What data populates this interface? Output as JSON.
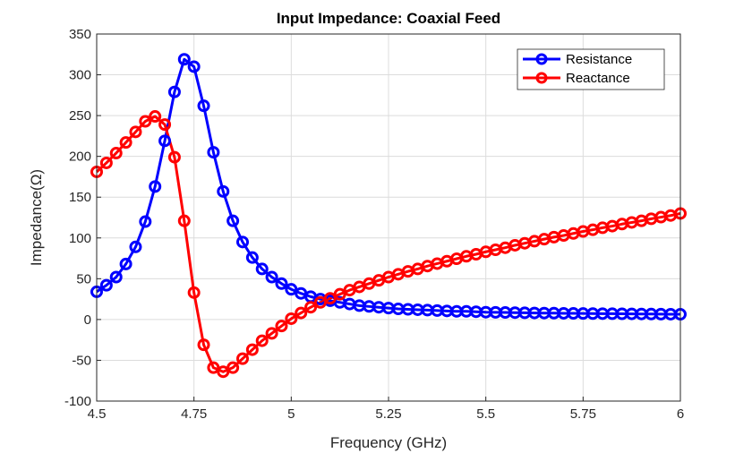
{
  "chart_data": {
    "type": "line",
    "title": "Input Impedance: Coaxial Feed",
    "xlabel": "Frequency (GHz)",
    "ylabel": "Impedance(Ω)",
    "xlim": [
      4.5,
      6
    ],
    "ylim": [
      -100,
      350
    ],
    "xticks": [
      4.5,
      4.75,
      5,
      5.25,
      5.5,
      5.75,
      6
    ],
    "xtick_labels": [
      "4.5",
      "4.75",
      "5",
      "5.25",
      "5.5",
      "5.75",
      "6"
    ],
    "yticks": [
      -100,
      -50,
      0,
      50,
      100,
      150,
      200,
      250,
      300,
      350
    ],
    "ytick_labels": [
      "-100",
      "-50",
      "0",
      "50",
      "100",
      "150",
      "200",
      "250",
      "300",
      "350"
    ],
    "grid": true,
    "legend_placement": "top-right",
    "marker": "circle",
    "x": [
      4.5,
      4.525,
      4.55,
      4.575,
      4.6,
      4.625,
      4.65,
      4.675,
      4.7,
      4.725,
      4.75,
      4.775,
      4.8,
      4.825,
      4.85,
      4.875,
      4.9,
      4.925,
      4.95,
      4.975,
      5.0,
      5.025,
      5.05,
      5.075,
      5.1,
      5.125,
      5.15,
      5.175,
      5.2,
      5.225,
      5.25,
      5.275,
      5.3,
      5.325,
      5.35,
      5.375,
      5.4,
      5.425,
      5.45,
      5.475,
      5.5,
      5.525,
      5.55,
      5.575,
      5.6,
      5.625,
      5.65,
      5.675,
      5.7,
      5.725,
      5.75,
      5.775,
      5.8,
      5.825,
      5.85,
      5.875,
      5.9,
      5.925,
      5.95,
      5.975,
      6.0
    ],
    "series": [
      {
        "name": "Resistance",
        "color": "#0000ff",
        "values": [
          34,
          42,
          52,
          68,
          89,
          120,
          163,
          219,
          279,
          319,
          310,
          262,
          205,
          157,
          121,
          95,
          76,
          62,
          52,
          44,
          37,
          32,
          28,
          25,
          23,
          21,
          19,
          17,
          16,
          15,
          14,
          13,
          12.5,
          12,
          11.5,
          11,
          10.5,
          10,
          10,
          9.5,
          9,
          8.8,
          8.6,
          8.4,
          8.2,
          8.0,
          7.9,
          7.8,
          7.6,
          7.5,
          7.4,
          7.3,
          7.2,
          7.1,
          7.0,
          6.9,
          6.8,
          6.7,
          6.6,
          6.5,
          6.4
        ]
      },
      {
        "name": "Reactance",
        "color": "#ff0000",
        "values": [
          181,
          192,
          204,
          217,
          230,
          243,
          249,
          239,
          199,
          121,
          33,
          -31,
          -59,
          -64,
          -59,
          -48,
          -37,
          -26,
          -17,
          -8,
          1,
          8,
          15,
          21,
          26,
          31,
          36,
          40,
          44,
          48,
          52,
          55.5,
          59,
          62,
          65.5,
          68.5,
          71.5,
          74.5,
          77.5,
          80,
          83,
          85.5,
          88,
          91,
          93.5,
          96,
          98.5,
          101,
          103,
          105.5,
          108,
          110,
          112.5,
          114.5,
          117,
          119,
          121,
          123.5,
          125.5,
          127.5,
          130
        ]
      }
    ]
  }
}
